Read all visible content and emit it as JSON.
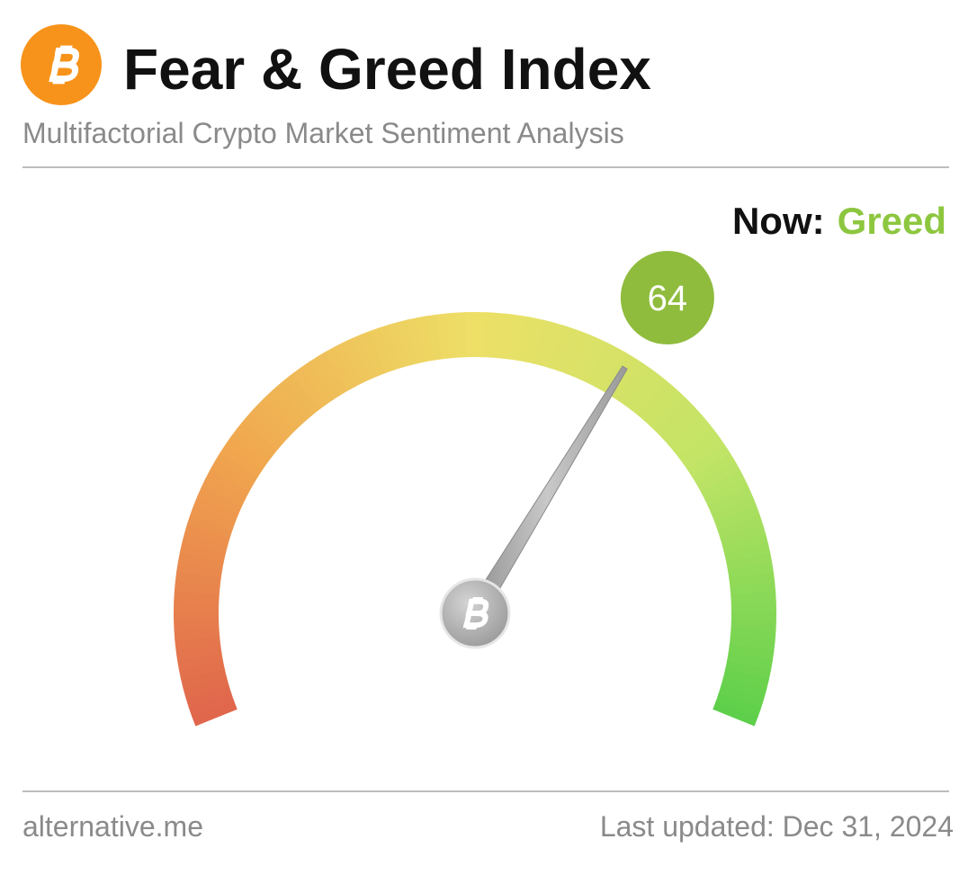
{
  "chart_data": {
    "type": "gauge",
    "title": "Fear & Greed Index",
    "subtitle": "Multifactorial Crypto Market Sentiment Analysis",
    "now_label": "Now:",
    "classification": "Greed",
    "classification_color": "#8dc63f",
    "value": 64,
    "value_color": "#8fbc3d",
    "ylim": [
      0,
      100
    ],
    "source": "alternative.me",
    "last_updated": "Last updated: Dec 31, 2024"
  }
}
